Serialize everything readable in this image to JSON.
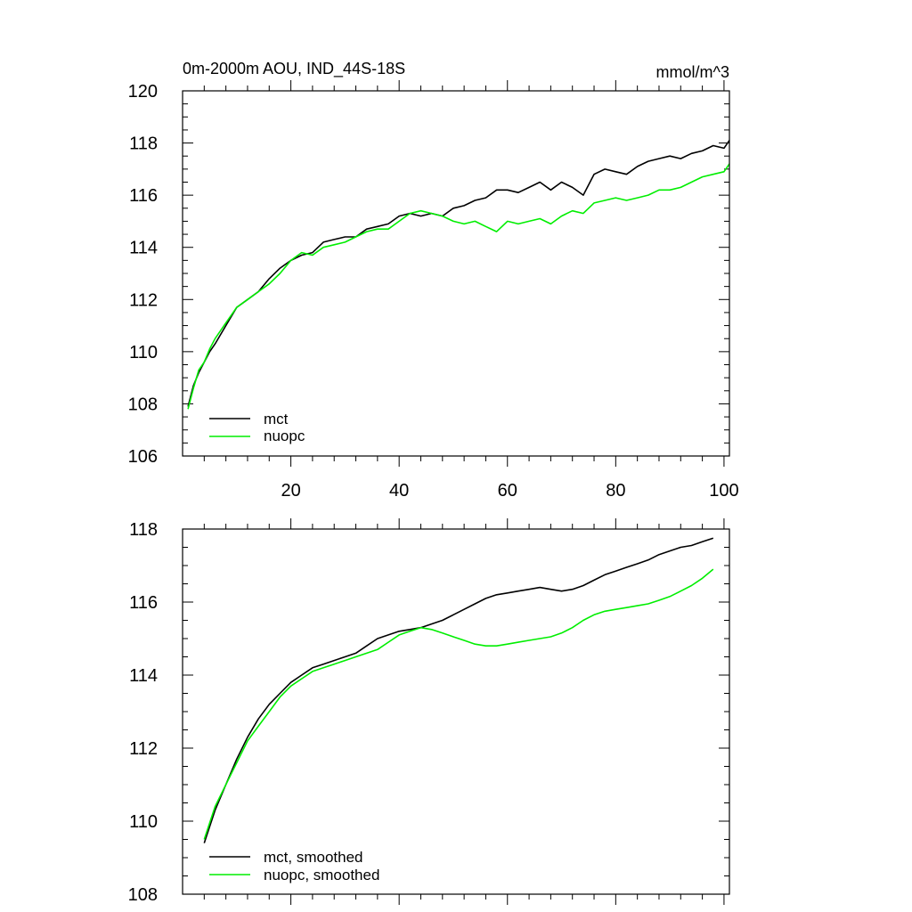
{
  "chart_data": [
    {
      "type": "line",
      "title_left": "0m-2000m AOU, IND_44S-18S",
      "title_right": "mmol/m^3",
      "xlim": [
        0,
        101
      ],
      "ylim": [
        106,
        120
      ],
      "xticks": [
        20,
        40,
        60,
        80,
        100
      ],
      "xtick_labels": [
        "20",
        "40",
        "60",
        "80",
        "100"
      ],
      "yticks": [
        106,
        108,
        110,
        112,
        114,
        116,
        118,
        120
      ],
      "ytick_labels": [
        "106",
        "108",
        "110",
        "112",
        "114",
        "116",
        "118",
        "120"
      ],
      "legend_position": "bottom-left",
      "series": [
        {
          "name": "mct",
          "color": "#000000",
          "x": [
            1,
            2,
            3,
            4,
            5,
            6,
            8,
            10,
            12,
            14,
            16,
            18,
            20,
            22,
            24,
            26,
            28,
            30,
            32,
            34,
            36,
            38,
            40,
            42,
            44,
            46,
            48,
            50,
            52,
            54,
            56,
            58,
            60,
            62,
            64,
            66,
            68,
            70,
            72,
            74,
            76,
            78,
            80,
            82,
            84,
            86,
            88,
            90,
            92,
            94,
            96,
            98,
            100,
            101
          ],
          "values": [
            107.9,
            108.7,
            109.2,
            109.6,
            110.0,
            110.3,
            111.0,
            111.7,
            112.0,
            112.3,
            112.8,
            113.2,
            113.5,
            113.7,
            113.8,
            114.2,
            114.3,
            114.4,
            114.4,
            114.7,
            114.8,
            114.9,
            115.2,
            115.3,
            115.2,
            115.3,
            115.2,
            115.5,
            115.6,
            115.8,
            115.9,
            116.2,
            116.2,
            116.1,
            116.3,
            116.5,
            116.2,
            116.5,
            116.3,
            116.0,
            116.8,
            117.0,
            116.9,
            116.8,
            117.1,
            117.3,
            117.4,
            117.5,
            117.4,
            117.6,
            117.7,
            117.9,
            117.8,
            118.1
          ]
        },
        {
          "name": "nuopc",
          "color": "#00ee00",
          "x": [
            1,
            2,
            3,
            4,
            5,
            6,
            8,
            10,
            12,
            14,
            16,
            18,
            20,
            22,
            24,
            26,
            28,
            30,
            32,
            34,
            36,
            38,
            40,
            42,
            44,
            46,
            48,
            50,
            52,
            54,
            56,
            58,
            60,
            62,
            64,
            66,
            68,
            70,
            72,
            74,
            76,
            78,
            80,
            82,
            84,
            86,
            88,
            90,
            92,
            94,
            96,
            98,
            100,
            101
          ],
          "values": [
            107.8,
            108.6,
            109.3,
            109.6,
            110.1,
            110.5,
            111.1,
            111.7,
            112.0,
            112.3,
            112.6,
            113.0,
            113.5,
            113.8,
            113.7,
            114.0,
            114.1,
            114.2,
            114.4,
            114.6,
            114.7,
            114.7,
            115.0,
            115.3,
            115.4,
            115.3,
            115.2,
            115.0,
            114.9,
            115.0,
            114.8,
            114.6,
            115.0,
            114.9,
            115.0,
            115.1,
            114.9,
            115.2,
            115.4,
            115.3,
            115.7,
            115.8,
            115.9,
            115.8,
            115.9,
            116.0,
            116.2,
            116.2,
            116.3,
            116.5,
            116.7,
            116.8,
            116.9,
            117.2
          ]
        }
      ]
    },
    {
      "type": "line",
      "title_left": "",
      "title_right": "",
      "xlim": [
        0,
        101
      ],
      "ylim": [
        108,
        118
      ],
      "xticks": [
        20,
        40,
        60,
        80,
        100
      ],
      "xtick_labels": [
        "",
        "",
        "",
        "",
        ""
      ],
      "yticks": [
        108,
        110,
        112,
        114,
        116,
        118
      ],
      "ytick_labels": [
        "108",
        "110",
        "112",
        "114",
        "116",
        "118"
      ],
      "legend_position": "bottom-left",
      "series": [
        {
          "name": "mct, smoothed",
          "color": "#000000",
          "x": [
            4,
            6,
            8,
            10,
            12,
            14,
            16,
            18,
            20,
            22,
            24,
            26,
            28,
            30,
            32,
            34,
            36,
            38,
            40,
            42,
            44,
            46,
            48,
            50,
            52,
            54,
            56,
            58,
            60,
            62,
            64,
            66,
            68,
            70,
            72,
            74,
            76,
            78,
            80,
            82,
            84,
            86,
            88,
            90,
            92,
            94,
            96,
            98
          ],
          "values": [
            109.4,
            110.3,
            111.0,
            111.7,
            112.3,
            112.8,
            113.2,
            113.5,
            113.8,
            114.0,
            114.2,
            114.3,
            114.4,
            114.5,
            114.6,
            114.8,
            115.0,
            115.1,
            115.2,
            115.25,
            115.3,
            115.4,
            115.5,
            115.65,
            115.8,
            115.95,
            116.1,
            116.2,
            116.25,
            116.3,
            116.35,
            116.4,
            116.35,
            116.3,
            116.35,
            116.45,
            116.6,
            116.75,
            116.85,
            116.95,
            117.05,
            117.15,
            117.3,
            117.4,
            117.5,
            117.55,
            117.65,
            117.75
          ]
        },
        {
          "name": "nuopc, smoothed",
          "color": "#00ee00",
          "x": [
            4,
            6,
            8,
            10,
            12,
            14,
            16,
            18,
            20,
            22,
            24,
            26,
            28,
            30,
            32,
            34,
            36,
            38,
            40,
            42,
            44,
            46,
            48,
            50,
            52,
            54,
            56,
            58,
            60,
            62,
            64,
            66,
            68,
            70,
            72,
            74,
            76,
            78,
            80,
            82,
            84,
            86,
            88,
            90,
            92,
            94,
            96,
            98
          ],
          "values": [
            109.5,
            110.4,
            111.0,
            111.6,
            112.2,
            112.6,
            113.0,
            113.4,
            113.7,
            113.9,
            114.1,
            114.2,
            114.3,
            114.4,
            114.5,
            114.6,
            114.7,
            114.9,
            115.1,
            115.2,
            115.3,
            115.25,
            115.15,
            115.05,
            114.95,
            114.85,
            114.8,
            114.8,
            114.85,
            114.9,
            114.95,
            115.0,
            115.05,
            115.15,
            115.3,
            115.5,
            115.65,
            115.75,
            115.8,
            115.85,
            115.9,
            115.95,
            116.05,
            116.15,
            116.3,
            116.45,
            116.65,
            116.9
          ]
        }
      ]
    }
  ]
}
